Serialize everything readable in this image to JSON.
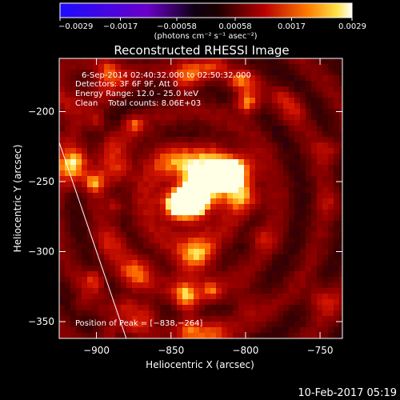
{
  "chart_data": {
    "type": "heatmap",
    "title": "Reconstructed RHESSI Image",
    "xlabel": "Heliocentric X (arcsec)",
    "ylabel": "Heliocentric Y (arcsec)",
    "xlim": [
      -925,
      -735
    ],
    "ylim": [
      -362,
      -162
    ],
    "x_ticks": [
      -900,
      -850,
      -800,
      -750
    ],
    "y_ticks": [
      -200,
      -250,
      -300,
      -350
    ],
    "x_tick_labels": [
      "−900",
      "−850",
      "−800",
      "−750"
    ],
    "y_tick_labels": [
      "−200",
      "−250",
      "−300",
      "−350"
    ],
    "colorbar": {
      "range": [
        -0.0029,
        0.0029
      ],
      "tick_values": [
        -0.0029,
        -0.0017,
        -0.00058,
        0.00058,
        0.0017,
        0.0029
      ],
      "tick_labels": [
        "−0.0029",
        "−0.0017",
        "−0.00058",
        "0.00058",
        "0.0017",
        "0.0029"
      ],
      "unit_label": "(photons cm⁻² s⁻¹ asec⁻²)"
    },
    "info_lines": [
      "6-Sep-2014 02:40:32.000 to 02:50:32.000",
      "Detectors: 3F 6F 9F, Att 0",
      "Energy Range: 12.0 – 25.0 keV",
      "Clean    Total counts: 8.06E+03"
    ],
    "peak": {
      "label": "Position of Peak = [−838,−264]",
      "x": -838,
      "y": -264
    },
    "limb_line": [
      [
        -925,
        -222
      ],
      [
        -880,
        -362
      ]
    ],
    "grid": false
  },
  "footer_timestamp": "10-Feb-2017 05:19"
}
